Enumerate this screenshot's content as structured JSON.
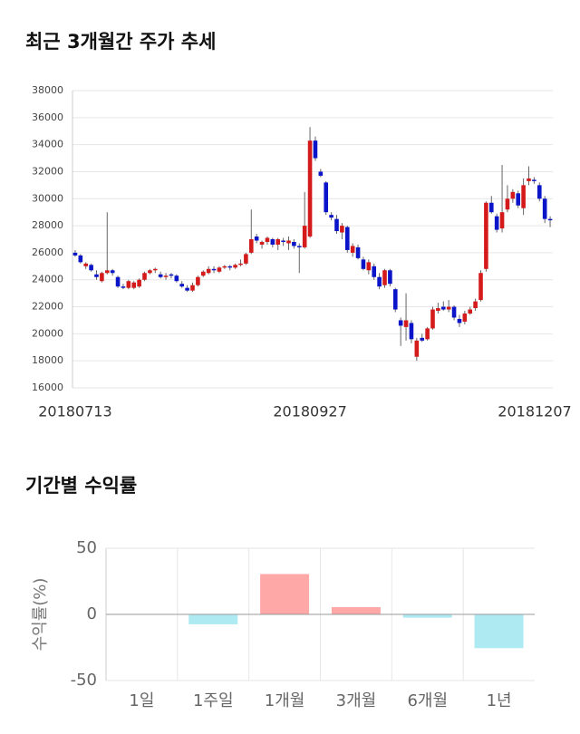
{
  "chart_data": [
    {
      "type": "candlestick",
      "title": "최근 3개월간 주가 추세",
      "categories": [
        "20180713",
        null,
        null,
        null,
        null,
        null,
        null,
        null,
        null,
        null,
        null,
        null,
        null,
        null,
        null,
        null,
        null,
        null,
        null,
        null,
        null,
        null,
        null,
        null,
        null,
        null,
        null,
        null,
        null,
        null,
        null,
        null,
        null,
        null,
        null,
        null,
        null,
        null,
        null,
        null,
        null,
        null,
        null,
        null,
        "20180927",
        null,
        null,
        null,
        null,
        null,
        null,
        null,
        null,
        null,
        null,
        null,
        null,
        null,
        null,
        null,
        null,
        null,
        null,
        null,
        null,
        null,
        null,
        null,
        null,
        null,
        null,
        null,
        null,
        null,
        null,
        null,
        null,
        null,
        null,
        null,
        null,
        null,
        null,
        null,
        null,
        null,
        null,
        null,
        null,
        "20181207"
      ],
      "open": [
        26000,
        25800,
        25000,
        25100,
        24400,
        23900,
        24500,
        24700,
        24200,
        23500,
        23400,
        23400,
        23500,
        24000,
        24500,
        24700,
        24400,
        24200,
        24400,
        24300,
        23700,
        23400,
        23200,
        23600,
        24300,
        24500,
        24800,
        24600,
        24900,
        25000,
        24900,
        25100,
        25200,
        26000,
        27200,
        26600,
        26800,
        27000,
        26600,
        26900,
        26700,
        26800,
        26500,
        26400,
        27200,
        34300,
        32000,
        31200,
        28800,
        28500,
        27500,
        27900,
        26000,
        26400,
        25500,
        24700,
        25000,
        24200,
        23600,
        24700,
        23300,
        21000,
        20500,
        20800,
        18300,
        19700,
        19600,
        20400,
        21700,
        22000,
        21800,
        22000,
        21100,
        20900,
        21500,
        21900,
        22500,
        24800,
        29700,
        28700,
        27800,
        29200,
        30000,
        30400,
        29300,
        31300,
        31400,
        31000,
        30000,
        28500
      ],
      "high": [
        26200,
        25900,
        25300,
        25200,
        24700,
        24600,
        29000,
        24800,
        24300,
        23700,
        24000,
        23900,
        24100,
        24600,
        24800,
        24900,
        24600,
        24500,
        24500,
        24400,
        23900,
        23600,
        23800,
        24300,
        24700,
        25000,
        25000,
        25000,
        25100,
        25100,
        25200,
        25500,
        26000,
        29200,
        27400,
        26900,
        27200,
        27100,
        27100,
        27100,
        27200,
        27000,
        26700,
        30500,
        35300,
        34600,
        32200,
        31300,
        29000,
        28800,
        28200,
        28000,
        26700,
        26600,
        25700,
        25500,
        25200,
        24500,
        24800,
        24800,
        23400,
        21200,
        23000,
        21000,
        19700,
        20000,
        20500,
        22000,
        22300,
        22400,
        22500,
        22100,
        21400,
        21700,
        22000,
        22600,
        24700,
        29800,
        30200,
        28900,
        32500,
        31000,
        30700,
        30600,
        31500,
        32400,
        31600,
        31200,
        30200,
        28700
      ],
      "low": [
        25700,
        25200,
        24800,
        24600,
        24000,
        23800,
        24400,
        24300,
        23400,
        23300,
        23300,
        23300,
        23400,
        23900,
        24400,
        24500,
        24100,
        24000,
        24100,
        23800,
        23400,
        23100,
        23100,
        23500,
        24200,
        24400,
        24500,
        24500,
        24800,
        24700,
        24800,
        25000,
        25100,
        25900,
        26700,
        26300,
        26600,
        26400,
        26200,
        26500,
        26200,
        26300,
        24500,
        26300,
        27100,
        32800,
        31600,
        28800,
        28400,
        27400,
        27000,
        26000,
        25700,
        25500,
        24700,
        24400,
        24000,
        23300,
        23400,
        23500,
        21600,
        19100,
        19500,
        19300,
        18000,
        19400,
        19500,
        20300,
        21500,
        21700,
        21600,
        21000,
        20500,
        20700,
        21400,
        21700,
        22400,
        24600,
        28900,
        27500,
        27500,
        29000,
        29700,
        29300,
        28800,
        31000,
        31100,
        29800,
        28200,
        27900
      ],
      "close": [
        25800,
        25300,
        25200,
        24700,
        24200,
        24500,
        24700,
        24500,
        23500,
        23400,
        23900,
        23800,
        24000,
        24500,
        24700,
        24800,
        24200,
        24300,
        24300,
        23900,
        23500,
        23200,
        23600,
        24200,
        24600,
        24800,
        24700,
        24900,
        25000,
        24900,
        25100,
        25200,
        25900,
        27000,
        26900,
        26800,
        27100,
        26600,
        27000,
        26800,
        26900,
        26500,
        26400,
        28000,
        34300,
        33000,
        31700,
        29000,
        28600,
        27600,
        28000,
        26200,
        26500,
        25600,
        24800,
        25300,
        24200,
        23500,
        24700,
        23700,
        21800,
        20600,
        21000,
        19600,
        19500,
        19500,
        20400,
        21800,
        21900,
        21800,
        22000,
        21200,
        20800,
        21500,
        21800,
        22400,
        24500,
        29700,
        29000,
        27700,
        29000,
        30000,
        30500,
        29500,
        31000,
        31500,
        31300,
        30000,
        28500,
        28400
      ],
      "up_color": "#d41a1a",
      "down_color": "#0a14c8",
      "ylim": [
        16000,
        38000
      ],
      "yticks": [
        16000,
        18000,
        20000,
        22000,
        24000,
        26000,
        28000,
        30000,
        32000,
        34000,
        36000,
        38000
      ],
      "grid": true
    },
    {
      "type": "bar",
      "title": "기간별 수익률",
      "y_label": "수익률(%)",
      "categories": [
        "1일",
        "1주일",
        "1개월",
        "3개월",
        "6개월",
        "1년"
      ],
      "values": [
        0,
        -7.5,
        30.5,
        5.5,
        -2.5,
        -25.5
      ],
      "positive_color": "#ffa8a8",
      "negative_color": "#aeeaf2",
      "ylim": [
        -50,
        50
      ],
      "yticks": [
        -50,
        0,
        50
      ],
      "grid": true
    }
  ]
}
